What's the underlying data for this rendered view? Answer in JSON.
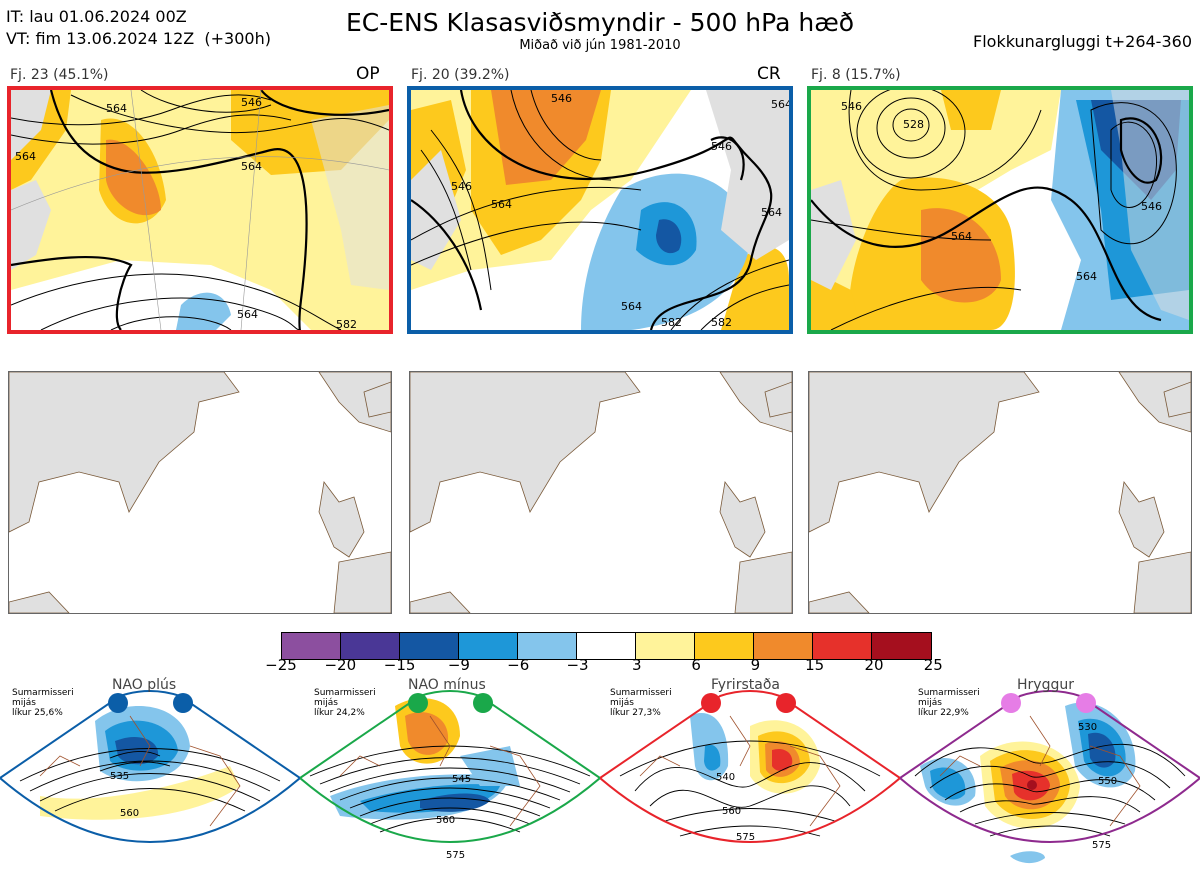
{
  "header": {
    "init_line": "IT: lau 01.06.2024 00Z",
    "valid_line": "VT: fim 13.06.2024 12Z  (+300h)",
    "title": "EC-ENS Klasasviðsmyndir - 500 hPa hæð",
    "subtitle": "Miðað við jún 1981-2010",
    "window": "Flokkunargluggi t+264-360"
  },
  "panels": [
    {
      "label": "Fj. 23 (45.1%)",
      "tag": "OP",
      "border_color": "#e8242b"
    },
    {
      "label": "Fj. 20 (39.2%)",
      "tag": "CR",
      "border_color": "#0b5ea8"
    },
    {
      "label": "Fj. 8 (15.7%)",
      "tag": "",
      "border_color": "#1aa84a"
    }
  ],
  "contour_labels": {
    "p1": [
      "564",
      "546",
      "564",
      "564",
      "564",
      "582"
    ],
    "p2": [
      "546",
      "546",
      "564",
      "546",
      "564",
      "582",
      "564",
      "582",
      "564"
    ],
    "p3": [
      "546",
      "528",
      "564",
      "546",
      "564"
    ]
  },
  "colorbar": {
    "colors": [
      "#8c4f9f",
      "#4a3796",
      "#1457a3",
      "#1e97d8",
      "#84c5ec",
      "#ffffff",
      "#fff39a",
      "#fdc91d",
      "#f08a2c",
      "#e6312b",
      "#a50f1e"
    ],
    "ticks": [
      "−25",
      "−20",
      "−15",
      "−9",
      "−6",
      "−3",
      "3",
      "6",
      "9",
      "15",
      "20",
      "25"
    ]
  },
  "regimes": [
    {
      "title": "NAO plús",
      "note": [
        "Sumarmisseri",
        "mijás",
        "líkur 25,6%"
      ],
      "dot_color": "#0b5ea8",
      "border_color": "#0b5ea8",
      "labels": [
        "535",
        "560"
      ]
    },
    {
      "title": "NAO mínus",
      "note": [
        "Sumarmisseri",
        "mijás",
        "líkur 24,2%"
      ],
      "dot_color": "#1aa84a",
      "border_color": "#1aa84a",
      "labels": [
        "545",
        "560",
        "575"
      ]
    },
    {
      "title": "Fyrirstaða",
      "note": [
        "Sumarmisseri",
        "mijás",
        "líkur 27,3%"
      ],
      "dot_color": "#e8242b",
      "border_color": "#e8242b",
      "labels": [
        "540",
        "560",
        "575"
      ]
    },
    {
      "title": "Hryggur",
      "note": [
        "Sumarmisseri",
        "mijás",
        "líkur 22,9%"
      ],
      "dot_color": "#e67de6",
      "border_color": "#8e2a8e",
      "labels": [
        "530",
        "550",
        "575"
      ]
    }
  ]
}
